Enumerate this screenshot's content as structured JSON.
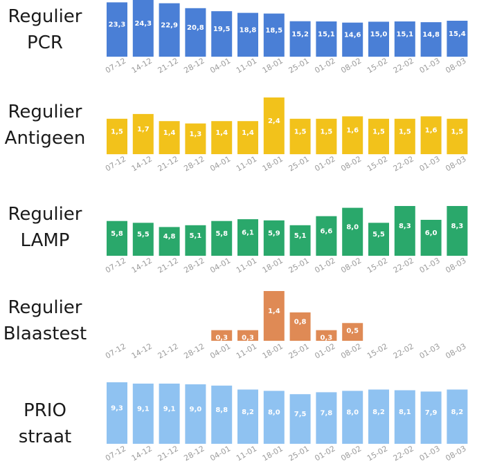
{
  "chart_data": [
    {
      "type": "bar",
      "title": "Regulier PCR",
      "title_lines": [
        "Regulier",
        "PCR"
      ],
      "color": "#4a7fd6",
      "categories": [
        "07-12",
        "14-12",
        "21-12",
        "28-12",
        "04-01",
        "11-01",
        "18-01",
        "25-01",
        "01-02",
        "08-02",
        "15-02",
        "22-02",
        "01-03",
        "08-03"
      ],
      "values": [
        23.3,
        24.3,
        22.9,
        20.8,
        19.5,
        18.8,
        18.5,
        15.2,
        15.1,
        14.6,
        15.0,
        15.1,
        14.8,
        15.4
      ],
      "labels": [
        "23,3",
        "24,3",
        "22,9",
        "20,8",
        "19,5",
        "18,8",
        "18,5",
        "15,2",
        "15,1",
        "14,6",
        "15,0",
        "15,1",
        "14,8",
        "15,4"
      ]
    },
    {
      "type": "bar",
      "title": "Regulier Antigeen",
      "title_lines": [
        "Regulier",
        "Antigeen"
      ],
      "color": "#f2c21b",
      "categories": [
        "07-12",
        "14-12",
        "21-12",
        "28-12",
        "04-01",
        "11-01",
        "18-01",
        "25-01",
        "01-02",
        "08-02",
        "15-02",
        "22-02",
        "01-03",
        "08-03"
      ],
      "values": [
        1.5,
        1.7,
        1.4,
        1.3,
        1.4,
        1.4,
        2.4,
        1.5,
        1.5,
        1.6,
        1.5,
        1.5,
        1.6,
        1.5
      ],
      "labels": [
        "1,5",
        "1,7",
        "1,4",
        "1,3",
        "1,4",
        "1,4",
        "2,4",
        "1,5",
        "1,5",
        "1,6",
        "1,5",
        "1,5",
        "1,6",
        "1,5"
      ]
    },
    {
      "type": "bar",
      "title": "Regulier LAMP",
      "title_lines": [
        "Regulier",
        "LAMP"
      ],
      "color": "#2aa86b",
      "categories": [
        "07-12",
        "14-12",
        "21-12",
        "28-12",
        "04-01",
        "11-01",
        "18-01",
        "25-01",
        "01-02",
        "08-02",
        "15-02",
        "22-02",
        "01-03",
        "08-03"
      ],
      "values": [
        5.8,
        5.5,
        4.8,
        5.1,
        5.8,
        6.1,
        5.9,
        5.1,
        6.6,
        8.0,
        5.5,
        8.3,
        6.0,
        8.3
      ],
      "labels": [
        "5,8",
        "5,5",
        "4,8",
        "5,1",
        "5,8",
        "6,1",
        "5,9",
        "5,1",
        "6,6",
        "8,0",
        "5,5",
        "8,3",
        "6,0",
        "8,3"
      ]
    },
    {
      "type": "bar",
      "title": "Regulier Blaastest",
      "title_lines": [
        "Regulier",
        "Blaastest"
      ],
      "color": "#df8a55",
      "categories": [
        "07-12",
        "14-12",
        "21-12",
        "28-12",
        "04-01",
        "11-01",
        "18-01",
        "25-01",
        "01-02",
        "08-02",
        "15-02",
        "22-02",
        "01-03",
        "08-03"
      ],
      "values": [
        null,
        null,
        null,
        null,
        0.3,
        0.3,
        1.4,
        0.8,
        0.3,
        0.5,
        null,
        null,
        null,
        null
      ],
      "labels": [
        "",
        "",
        "",
        "",
        "0,3",
        "0,3",
        "1,4",
        "0,8",
        "0,3",
        "0,5",
        "",
        "",
        "",
        ""
      ]
    },
    {
      "type": "bar",
      "title": "PRIO straat",
      "title_lines": [
        "PRIO",
        "straat"
      ],
      "color": "#8fc2f1",
      "categories": [
        "07-12",
        "14-12",
        "21-12",
        "28-12",
        "04-01",
        "11-01",
        "18-01",
        "25-01",
        "01-02",
        "08-02",
        "15-02",
        "22-02",
        "01-03",
        "08-03"
      ],
      "values": [
        9.3,
        9.1,
        9.1,
        9.0,
        8.8,
        8.2,
        8.0,
        7.5,
        7.8,
        8.0,
        8.2,
        8.1,
        7.9,
        8.2
      ],
      "labels": [
        "9,3",
        "9,1",
        "9,1",
        "9,0",
        "8,8",
        "8,2",
        "8,0",
        "7,5",
        "7,8",
        "8,0",
        "8,2",
        "8,1",
        "7,9",
        "8,2"
      ]
    }
  ]
}
